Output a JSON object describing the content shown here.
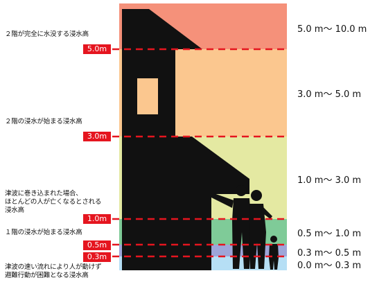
{
  "bands": [
    {
      "range": "5.0 m〜 10.0 m",
      "color": "#f5917a"
    },
    {
      "range": "3.0 m〜 5.0 m",
      "color": "#fbc78f"
    },
    {
      "range": "1.0 m〜 3.0 m",
      "color": "#e4e9a2"
    },
    {
      "range": "0.5 m〜 1.0 m",
      "color": "#7fcb98"
    },
    {
      "range": "0.3 m〜 0.5 m",
      "color": "#9ea6d9"
    },
    {
      "range": "0.0 m〜 0.3 m",
      "color": "#b6dff5"
    }
  ],
  "levels": [
    {
      "tag": "5.0m",
      "description": "２階が完全に水没する浸水高"
    },
    {
      "tag": "3.0m",
      "description": "２階の浸水が始まる浸水高"
    },
    {
      "tag": "1.0m",
      "description": "津波に巻き込まれた場合、\nほとんどの人が亡くなるとされる\n浸水高"
    },
    {
      "tag": "0.5m",
      "description": "１階の浸水が始まる浸水高"
    },
    {
      "tag": "0.3m",
      "description": "津波の速い流れにより人が動けず\n避難行動が困難となる浸水高"
    }
  ],
  "colors": {
    "line": "#e5151f",
    "silhouette": "#111111"
  }
}
